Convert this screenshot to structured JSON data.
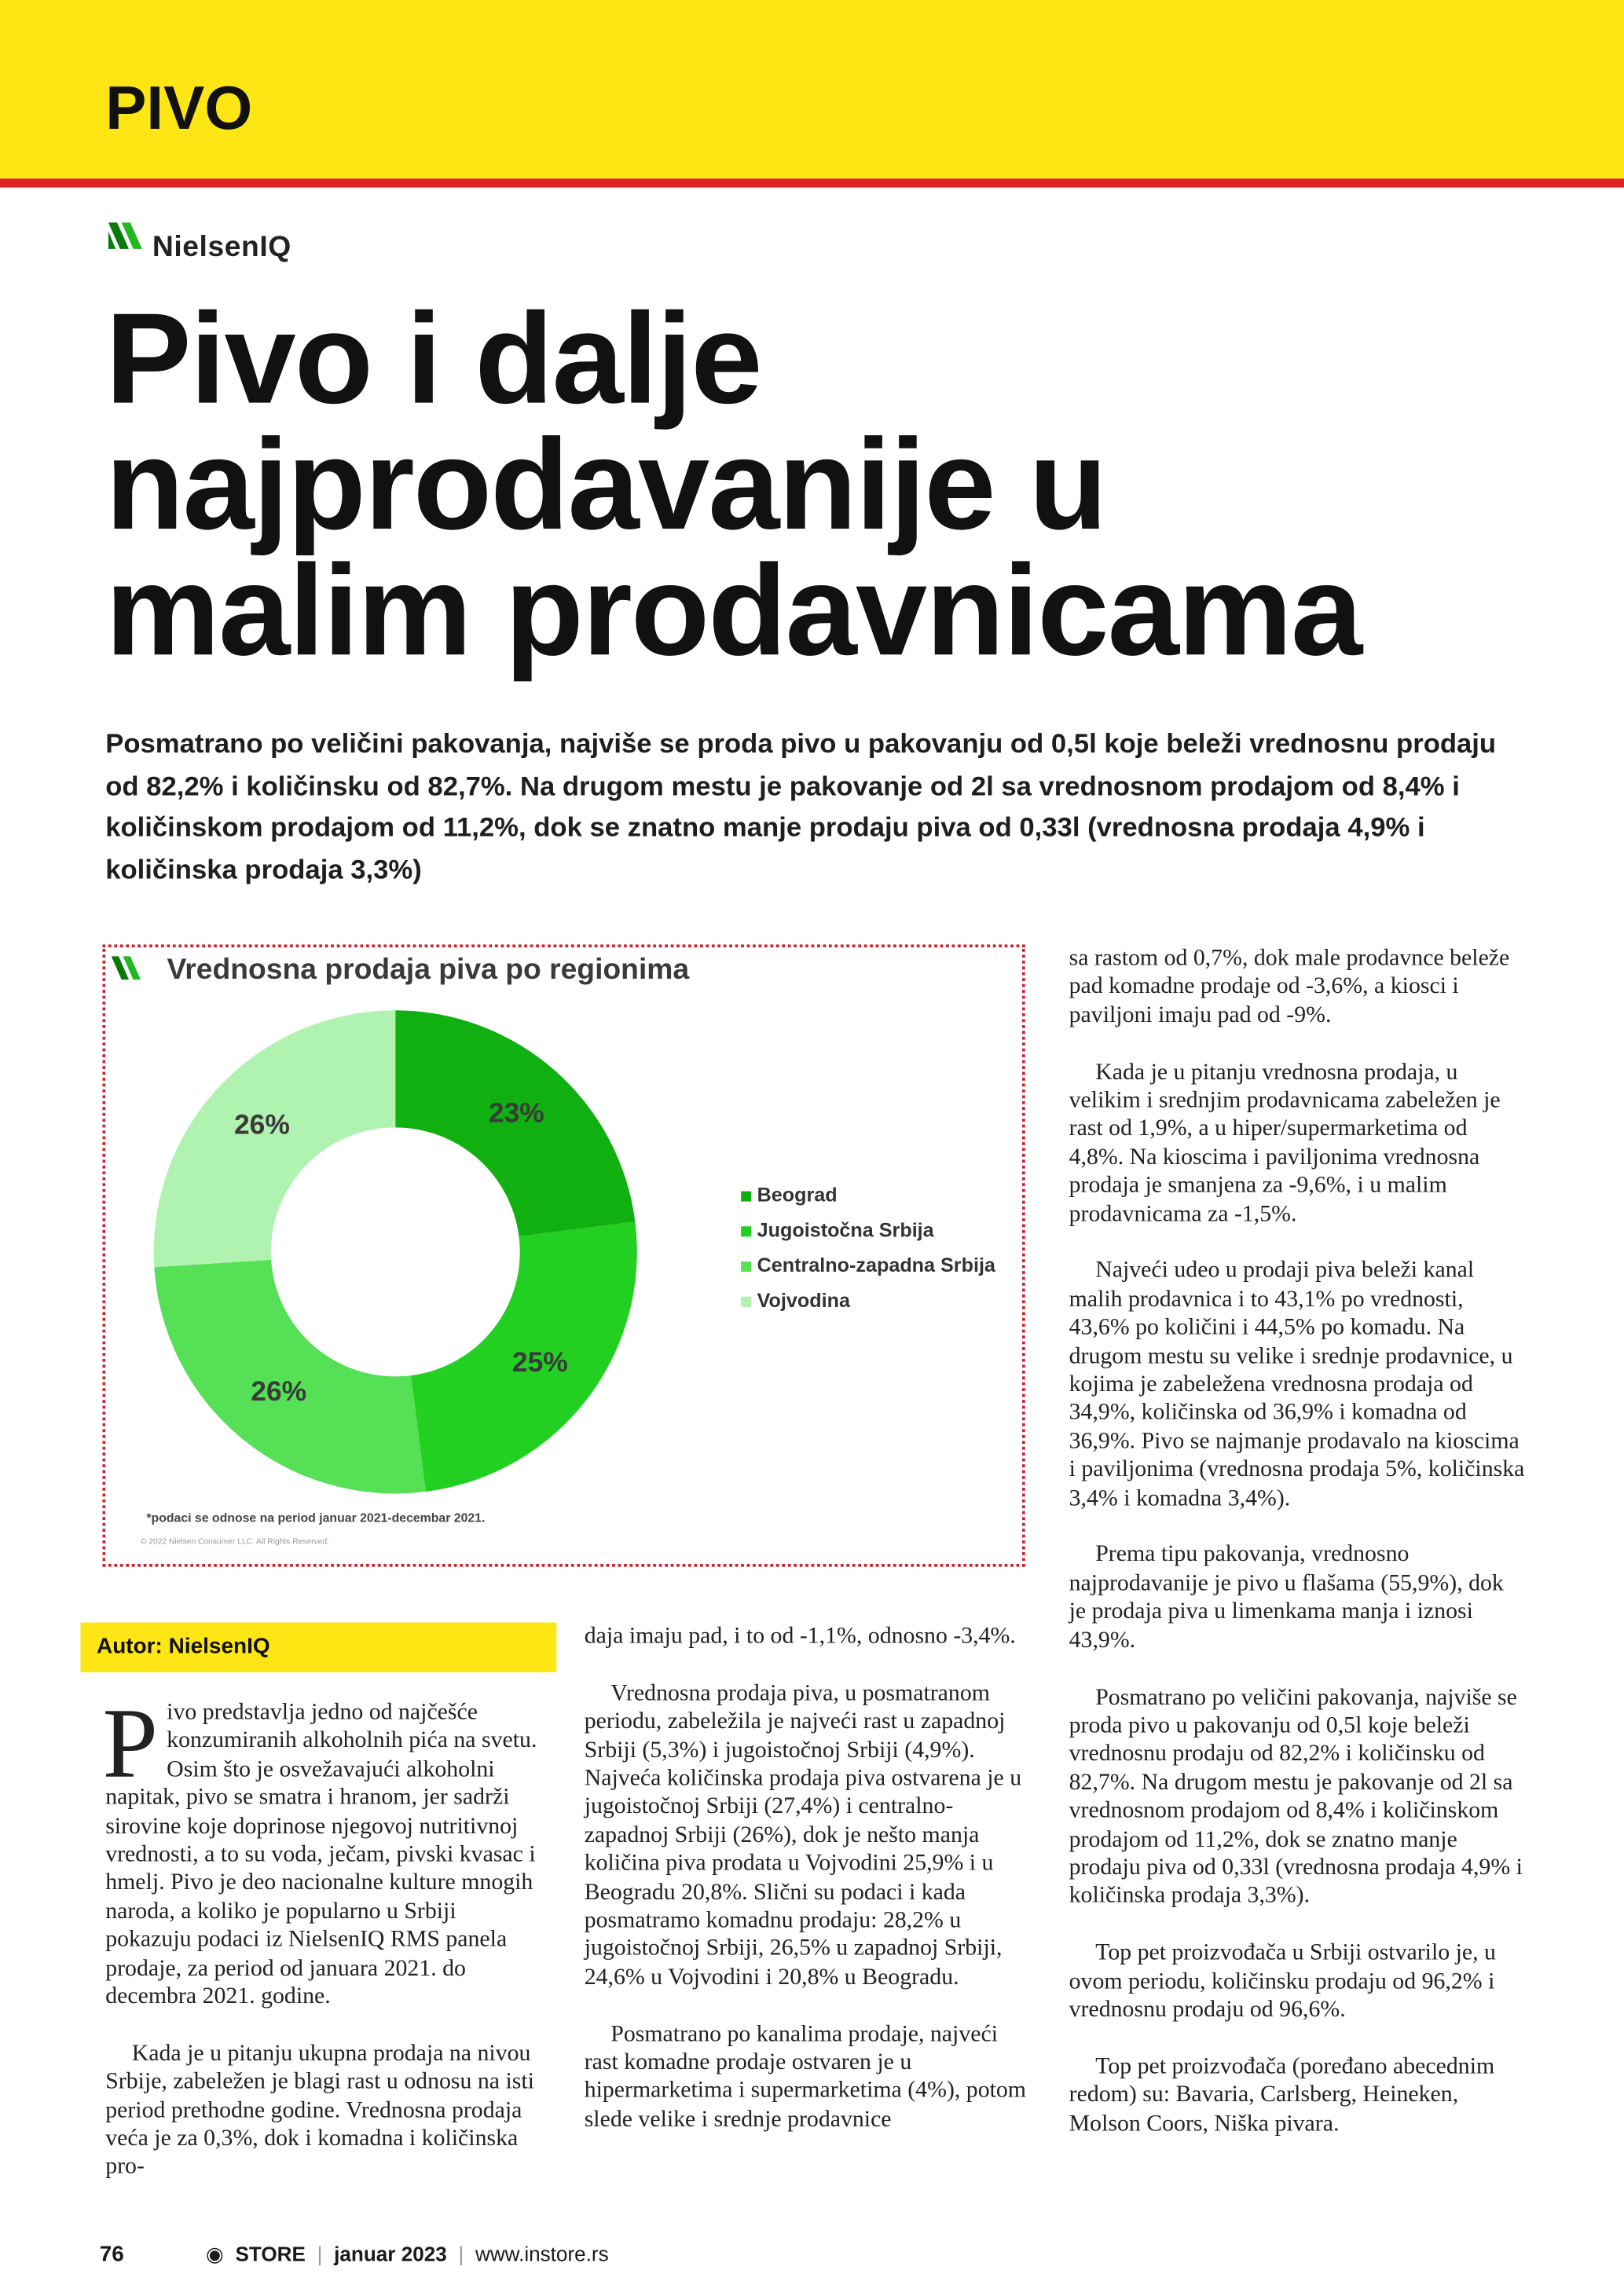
{
  "section": "PIVO",
  "logo": "NielsenIQ",
  "title": [
    "Pivo i dalje",
    "najprodavanije u",
    "malim prodavnicama"
  ],
  "lead": "Posmatrano po veličini pakovanja, najviše se proda pivo u pakovanju od 0,5l koje beleži vrednosnu prodaju od 82,2% i količinsku od 82,7%. Na drugom mestu je pakovanje od 2l sa vrednosnom prodajom od 8,4% i količinskom prodajom od 11,2%, dok se znatno manje prodaju piva od 0,33l (vrednosna prodaja 4,9% i količinska prodaja 3,3%)",
  "chart_data": {
    "type": "pie",
    "title": "Vrednosna prodaja piva po regionima",
    "categories": [
      "Beograd",
      "Jugoistočna Srbija",
      "Centralno-zapadna Srbija",
      "Vojvodina"
    ],
    "values": [
      23,
      25,
      26,
      26
    ],
    "value_labels": [
      "23%",
      "25%",
      "26%",
      "26%"
    ],
    "colors": [
      "#10b010",
      "#22d022",
      "#55e055",
      "#b0f2b0"
    ],
    "donut": true,
    "legend": "right",
    "note": "*podaci  se odnose na period januar 2021-decembar 2021.",
    "copyright": "© 2022 Nielsen Consumer LLC. All Rights Reserved."
  },
  "author": "Autor: NielsenIQ",
  "body": {
    "dropcap": "P",
    "columns": [
      [
        "ivo predstavlja jedno od najčešće konzumiranih alkoholnih pića na svetu. Osim što je osvežavajući alkoholni napitak, pivo se smatra i hranom, jer sadrži sirovine koje doprinose njegovoj nutritivnoj vrednosti, a to su voda, ječam, pivski kvasac i hmelj. Pivo je deo nacionalne kulture mnogih naroda, a koliko je popularno u Srbiji pokazuju podaci iz NielsenIQ RMS panela prodaje, za period od januara 2021. do decembra 2021. godine.",
        "Kada je u pitanju ukupna prodaja na nivou Srbije, zabeležen je blagi rast u odnosu na isti period prethodne godine. Vrednosna prodaja veća je za 0,3%, dok i komadna i količinska pro-"
      ],
      [
        "daja imaju pad, i to od -1,1%, odnosno -3,4%.",
        "Vrednosna prodaja piva, u posmatranom periodu, zabeležila je najveći rast u zapadnoj Srbiji (5,3%) i jugoistočnoj Srbiji (4,9%). Najveća količinska prodaja piva ostvarena je u jugoistočnoj Srbiji (27,4%) i centralno-zapadnoj Srbiji (26%), dok je nešto manja količina piva prodata u Vojvodini 25,9% i u Beogradu 20,8%. Slični su podaci i kada posmatramo komadnu prodaju: 28,2% u jugoistočnoj Srbiji, 26,5% u zapadnoj Srbiji, 24,6% u Vojvodini i 20,8% u Beogradu.",
        "Posmatrano po kanalima prodaje, najveći rast komadne prodaje ostvaren je u hipermarketima i supermarketima (4%), potom slede velike i srednje prodavnice"
      ],
      [
        "sa rastom od 0,7%, dok male prodavnce beleže pad komadne prodaje od -3,6%, a kiosci i paviljoni imaju pad od -9%.",
        "Kada je u pitanju vrednosna prodaja, u velikim i srednjim prodavnicama zabeležen je rast od 1,9%, a u hiper/supermarketima od 4,8%. Na kioscima i paviljonima vrednosna prodaja je smanjena za -9,6%, i u malim prodavnicama za -1,5%.",
        "Najveći udeo u prodaji piva beleži kanal malih prodavnica i to 43,1% po vrednosti, 43,6% po količini i 44,5% po komadu. Na drugom mestu su velike i srednje prodavnice, u kojima je zabeležena vrednosna prodaja od 34,9%, količinska od 36,9% i komadna od 36,9%. Pivo se najmanje prodavalo na kioscima i paviljonima (vrednosna prodaja 5%, količinska 3,4% i komadna 3,4%).",
        "Prema tipu pakovanja, vrednosno najprodavanije je pivo u flašama (55,9%), dok je prodaja piva u limenkama manja i iznosi 43,9%.",
        "Posmatrano po veličini pakovanja, najviše se proda pivo u pakovanju od 0,5l koje beleži vrednosnu prodaju od 82,2% i količinsku od 82,7%. Na drugom mestu je pakovanje od 2l sa vrednosnom prodajom od 8,4% i količinskom prodajom od 11,2%, dok se znatno manje prodaju piva od 0,33l (vrednosna prodaja 4,9% i količinska prodaja 3,3%).",
        "Top pet proizvođača u Srbiji ostvarilo je, u ovom periodu, količinsku prodaju od 96,2% i vrednosnu prodaju od 96,6%.",
        "Top pet proizvođača (poređano abecednim redom) su: Bavaria, Carlsberg, Heineken, Molson Coors, Niška pivara."
      ]
    ]
  },
  "footer": {
    "page": "76",
    "brand": "STORE",
    "issue": "januar 2023",
    "url": "www.instore.rs"
  }
}
